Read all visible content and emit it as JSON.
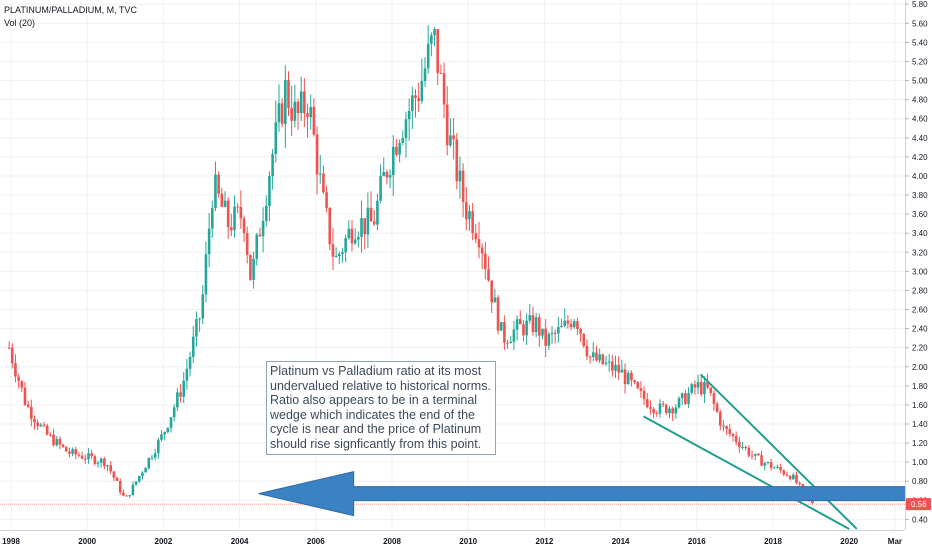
{
  "header": {
    "symbol": "PLATINUM/PALLADIUM, M, TVC",
    "indicator": "Vol (20)"
  },
  "annotation": "Platinum vs Palladium ratio at its most undervalued relative to historical norms. Ratio also appears to be in a terminal wedge which indicates the end of the cycle is near and the price of Platinum should rise signficantly from this point.",
  "colors": {
    "up": "#26a69a",
    "down": "#ef5350",
    "wedge": "#1f9e8e",
    "arrow": "#3b82c4",
    "last_price_bg": "#ef5350",
    "grid": "#eef0f3"
  },
  "chart_data": {
    "type": "candlestick",
    "x_axis": {
      "ticks": [
        "1998",
        "2000",
        "2002",
        "2004",
        "2006",
        "2008",
        "2010",
        "2012",
        "2014",
        "2016",
        "2018",
        "2020",
        "Mar"
      ],
      "tick_years": [
        1998,
        2000,
        2002,
        2004,
        2006,
        2008,
        2010,
        2012,
        2014,
        2016,
        2018,
        2020,
        2021.2
      ]
    },
    "y_axis": {
      "position": "right",
      "ylim": [
        0.3,
        5.85
      ],
      "ticks": [
        "0.40",
        "0.60",
        "0.80",
        "1.00",
        "1.20",
        "1.40",
        "1.60",
        "1.80",
        "2.00",
        "2.20",
        "2.40",
        "2.60",
        "2.80",
        "3.00",
        "3.20",
        "3.40",
        "3.60",
        "3.80",
        "4.00",
        "4.20",
        "4.40",
        "4.60",
        "4.80",
        "5.00",
        "5.20",
        "5.40",
        "5.60",
        "5.80"
      ]
    },
    "last_price": {
      "label": "0.56",
      "value": 0.56
    },
    "price_path": [
      [
        1997.95,
        2.2
      ],
      [
        1998.4,
        1.6
      ],
      [
        1998.9,
        1.3
      ],
      [
        1999.5,
        1.1
      ],
      [
        2000.0,
        1.05
      ],
      [
        2000.5,
        1.0
      ],
      [
        2001.0,
        0.6
      ],
      [
        2001.5,
        0.95
      ],
      [
        2002.0,
        1.3
      ],
      [
        2002.5,
        1.8
      ],
      [
        2003.0,
        2.6
      ],
      [
        2003.3,
        3.9
      ],
      [
        2003.7,
        3.5
      ],
      [
        2004.1,
        3.6
      ],
      [
        2004.3,
        2.9
      ],
      [
        2004.8,
        4.1
      ],
      [
        2005.2,
        4.9
      ],
      [
        2005.5,
        4.6
      ],
      [
        2005.8,
        4.8
      ],
      [
        2006.2,
        3.7
      ],
      [
        2006.5,
        3.1
      ],
      [
        2007.0,
        3.5
      ],
      [
        2007.5,
        3.5
      ],
      [
        2007.8,
        4.0
      ],
      [
        2008.2,
        4.5
      ],
      [
        2008.7,
        4.9
      ],
      [
        2009.1,
        5.45
      ],
      [
        2009.5,
        4.4
      ],
      [
        2009.9,
        3.7
      ],
      [
        2010.3,
        3.4
      ],
      [
        2010.6,
        2.8
      ],
      [
        2010.9,
        2.3
      ],
      [
        2011.3,
        2.4
      ],
      [
        2011.8,
        2.45
      ],
      [
        2012.0,
        2.25
      ],
      [
        2012.5,
        2.4
      ],
      [
        2012.8,
        2.55
      ],
      [
        2013.2,
        2.1
      ],
      [
        2013.7,
        2.0
      ],
      [
        2014.0,
        1.95
      ],
      [
        2014.5,
        1.7
      ],
      [
        2015.0,
        1.55
      ],
      [
        2015.5,
        1.6
      ],
      [
        2016.0,
        1.8
      ],
      [
        2016.3,
        1.75
      ],
      [
        2016.7,
        1.35
      ],
      [
        2017.0,
        1.25
      ],
      [
        2017.5,
        1.05
      ],
      [
        2018.0,
        0.95
      ],
      [
        2018.5,
        0.85
      ],
      [
        2018.9,
        0.62
      ],
      [
        2019.1,
        0.56
      ]
    ],
    "wedge_upper": [
      [
        2016.1,
        1.92
      ],
      [
        2020.2,
        0.3
      ]
    ],
    "wedge_lower": [
      [
        2014.6,
        1.48
      ],
      [
        2020.0,
        0.3
      ]
    ],
    "arrow": {
      "from": [
        2021.6,
        0.67
      ],
      "to": [
        2004.5,
        0.67
      ]
    }
  }
}
